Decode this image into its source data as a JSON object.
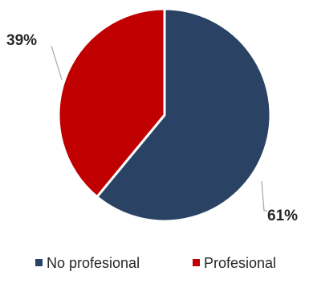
{
  "chart_data": {
    "type": "pie",
    "title": "",
    "legend_position": "bottom",
    "slices": [
      {
        "name": "No profesional",
        "value": 61,
        "label": "61%",
        "color": "#2a4365"
      },
      {
        "name": "Profesional",
        "value": 39,
        "label": "39%",
        "color": "#c00000"
      }
    ]
  }
}
